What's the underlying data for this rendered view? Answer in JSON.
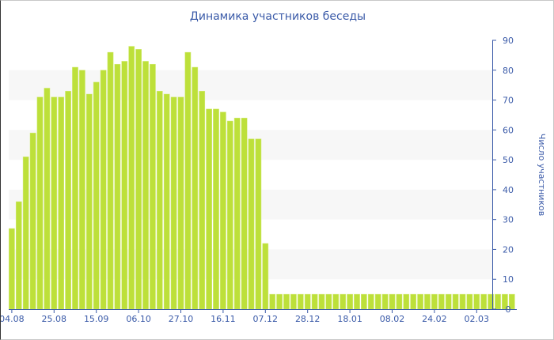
{
  "chart_data": {
    "type": "bar",
    "title": "Динамика участников беседы",
    "xlabel": "",
    "ylabel": "Число участников",
    "ylim": [
      0,
      90
    ],
    "yticks": [
      0,
      10,
      20,
      30,
      40,
      50,
      60,
      70,
      80,
      90
    ],
    "xtick_labels": [
      "04.08",
      "25.08",
      "15.09",
      "06.10",
      "27.10",
      "16.11",
      "07.12",
      "28.12",
      "18.01",
      "08.02",
      "24.02",
      "02.03"
    ],
    "xtick_every_n_bars": 6,
    "y_axis_position": "right",
    "grid": "alternating horizontal bands",
    "bar_color": "#bde03a",
    "axis_color": "#3a5aa8",
    "values": [
      27,
      36,
      51,
      59,
      71,
      74,
      71,
      71,
      73,
      81,
      80,
      72,
      76,
      80,
      86,
      82,
      83,
      88,
      87,
      83,
      82,
      73,
      72,
      71,
      71,
      86,
      81,
      73,
      67,
      67,
      66,
      63,
      64,
      64,
      57,
      57,
      22,
      5,
      5,
      5,
      5,
      5,
      5,
      5,
      5,
      5,
      5,
      5,
      5,
      5,
      5,
      5,
      5,
      5,
      5,
      5,
      5,
      5,
      5,
      5,
      5,
      5,
      5,
      5,
      5,
      5,
      5,
      5,
      5,
      5,
      5,
      5
    ]
  }
}
